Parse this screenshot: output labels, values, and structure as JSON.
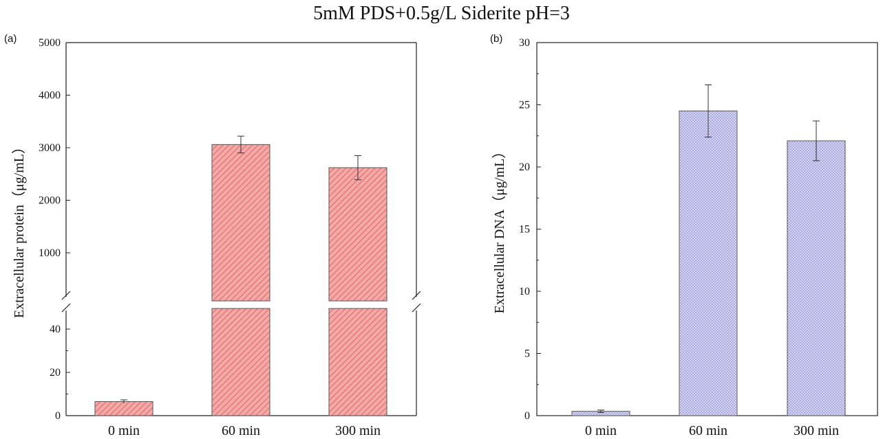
{
  "title": "5mM PDS+0.5g/L Siderite pH=3",
  "colors": {
    "protein_bar": "#f4a9a9",
    "protein_hatch": "#e05050",
    "dna_bar": "#d6d6f2",
    "dna_dots": "#6a6ac8"
  },
  "chart_data": [
    {
      "panel": "(a)",
      "type": "bar",
      "categories": [
        "0 min",
        "60 min",
        "300 min"
      ],
      "values": [
        6.5,
        3060,
        2620
      ],
      "errors": [
        0.8,
        160,
        230
      ],
      "ylabel": "Extracellular protein（μg/mL）",
      "axis_break": true,
      "lower_segment": {
        "ylim": [
          0,
          50
        ],
        "ticks": [
          "0",
          "20",
          "40"
        ]
      },
      "upper_segment": {
        "ylim": [
          0,
          5000
        ],
        "ticks": [
          "1000",
          "2000",
          "3000",
          "4000",
          "5000"
        ]
      },
      "grid": false
    },
    {
      "panel": "(b)",
      "type": "bar",
      "categories": [
        "0 min",
        "60 min",
        "300 min"
      ],
      "values": [
        0.35,
        24.5,
        22.1
      ],
      "errors": [
        0.1,
        2.1,
        1.6
      ],
      "ylabel": "Extracellular DNA（μg/mL）",
      "ylim": [
        0,
        30
      ],
      "ticks": [
        "0",
        "5",
        "10",
        "15",
        "20",
        "25",
        "30"
      ],
      "grid": false
    }
  ]
}
